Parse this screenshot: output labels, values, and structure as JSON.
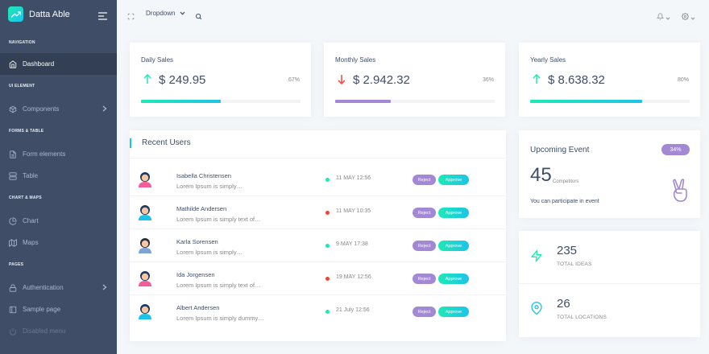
{
  "brand": {
    "name": "Datta Able"
  },
  "header": {
    "dropdown_label": "Dropdown"
  },
  "sidebar": {
    "sections": [
      {
        "caption": "NAVIGATION",
        "items": [
          {
            "label": "Dashboard",
            "icon": "home-icon",
            "active": true
          }
        ]
      },
      {
        "caption": "UI ELEMENT",
        "items": [
          {
            "label": "Components",
            "icon": "box-icon",
            "has_children": true
          }
        ]
      },
      {
        "caption": "FORMS & TABLE",
        "items": [
          {
            "label": "Form elements",
            "icon": "file-text-icon"
          },
          {
            "label": "Table",
            "icon": "server-icon"
          }
        ]
      },
      {
        "caption": "CHART & MAPS",
        "items": [
          {
            "label": "Chart",
            "icon": "pie-chart-icon"
          },
          {
            "label": "Maps",
            "icon": "map-icon"
          }
        ]
      },
      {
        "caption": "PAGES",
        "items": [
          {
            "label": "Authentication",
            "icon": "lock-icon",
            "has_children": true
          },
          {
            "label": "Sample page",
            "icon": "sidebar-icon"
          },
          {
            "label": "Disabled menu",
            "icon": "power-icon",
            "disabled": true
          }
        ]
      }
    ]
  },
  "stats": [
    {
      "title": "Daily Sales",
      "value": "$ 249.95",
      "percent": "67%",
      "progress": 0.5,
      "trend": "up",
      "color": "#1de9b6"
    },
    {
      "title": "Monthly Sales",
      "value": "$ 2.942.32",
      "percent": "36%",
      "progress": 0.35,
      "trend": "down",
      "color": "#a389d4"
    },
    {
      "title": "Yearly Sales",
      "value": "$ 8.638.32",
      "percent": "80%",
      "progress": 0.7,
      "trend": "up",
      "color": "#1de9b6"
    }
  ],
  "recent_users": {
    "title": "Recent Users",
    "reject_label": "Reject",
    "approve_label": "Approve",
    "rows": [
      {
        "name": "Isabella Christensen",
        "desc": "Lorem Ipsum is simply…",
        "time": "11 MAY 12:56",
        "status": "green",
        "avatar": "female"
      },
      {
        "name": "Mathilde Andersen",
        "desc": "Lorem Ipsum is simply text of…",
        "time": "11 MAY 10:35",
        "status": "red",
        "avatar": "male"
      },
      {
        "name": "Karla Sorensen",
        "desc": "Lorem Ipsum is simply…",
        "time": "9 MAY 17:38",
        "status": "green",
        "avatar": "female-dark"
      },
      {
        "name": "Ida Jorgensen",
        "desc": "Lorem Ipsum is simply text of…",
        "time": "19 MAY 12:56",
        "status": "red",
        "avatar": "female"
      },
      {
        "name": "Albert Andersen",
        "desc": "Lorem Ipsum is simply dummy…",
        "time": "21 July 12:56",
        "status": "green",
        "avatar": "male"
      }
    ]
  },
  "upcoming_event": {
    "title": "Upcoming Event",
    "badge": "34%",
    "count": "45",
    "count_label": "Competitors",
    "subtitle": "You can participate in event"
  },
  "info": [
    {
      "value": "235",
      "label": "TOTAL IDEAS",
      "icon": "zap-icon"
    },
    {
      "value": "26",
      "label": "TOTAL LOCATIONS",
      "icon": "map-pin-icon"
    }
  ],
  "colors": {
    "sidebar": "#3f4d67",
    "accent": "#1de9b6",
    "purple": "#a389d4",
    "red": "#f44236",
    "cyan": "#1dc4e9"
  }
}
